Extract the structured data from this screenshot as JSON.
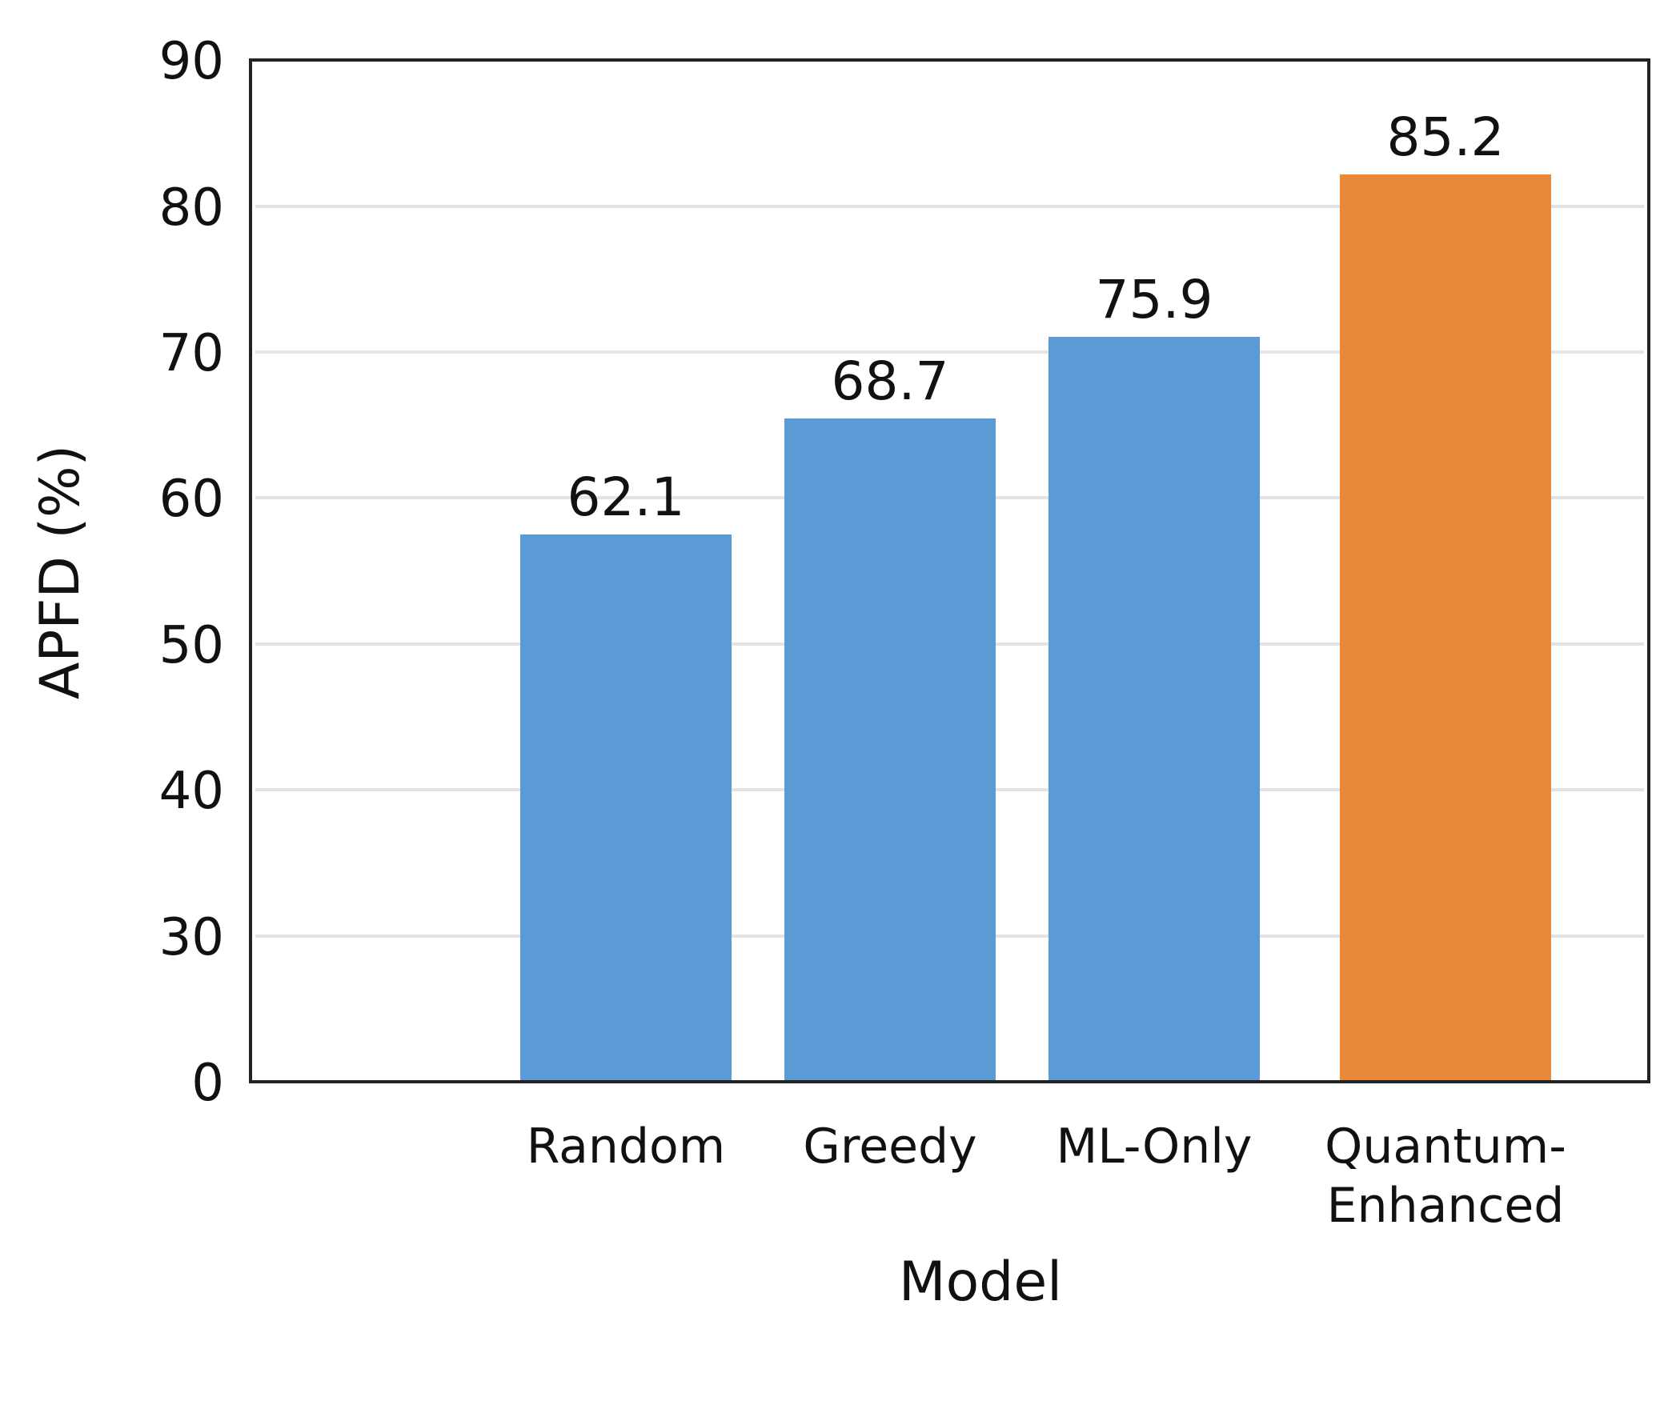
{
  "chart_data": {
    "type": "bar",
    "title": "",
    "xlabel": "Model",
    "ylabel": "APFD (%)",
    "ylim": [
      0,
      90
    ],
    "yticks": [
      "0",
      "30",
      "40",
      "50",
      "60",
      "70",
      "80",
      "90"
    ],
    "grid": "horizontal",
    "categories": [
      [
        "Random"
      ],
      [
        "Greedy"
      ],
      [
        "ML-Only"
      ],
      [
        "Quantum-",
        "Enhanced"
      ]
    ],
    "values": [
      62.1,
      68.7,
      75.9,
      85.2
    ],
    "data_labels": [
      "62.1",
      "68.7",
      "75.9",
      "85.2"
    ],
    "colors": [
      "#5b9bd5",
      "#5b9bd5",
      "#5b9bd5",
      "#e8893a"
    ]
  }
}
